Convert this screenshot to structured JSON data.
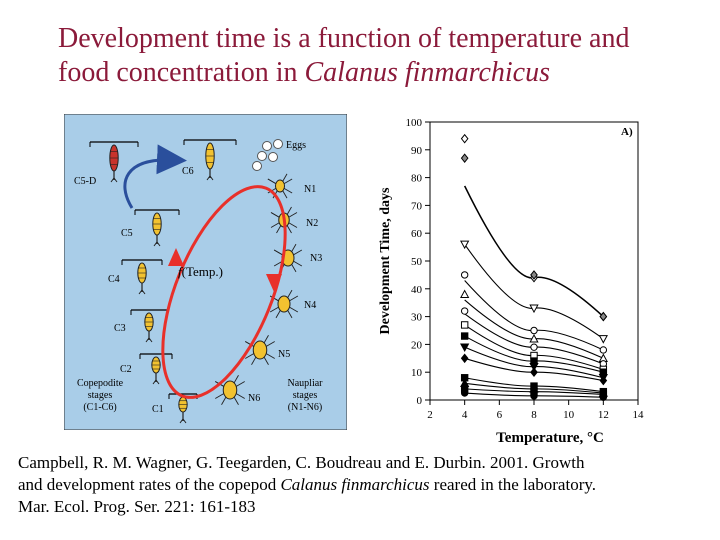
{
  "slide": {
    "title_line1": "Development time is a function of temperature and",
    "title_line2_prefix": "food concentration in ",
    "title_line2_species": "Calanus finmarchicus"
  },
  "diagram": {
    "center_label_f": "f",
    "center_label_rest": "(Temp.)",
    "eggs_label": "Eggs",
    "copepodite_labels": [
      "C5-D",
      "C6",
      "C5",
      "C4",
      "C3",
      "C2",
      "C1"
    ],
    "naupliar_labels": [
      "N1",
      "N2",
      "N3",
      "N4",
      "N5",
      "N6"
    ],
    "copepodite_caption": [
      "Copepodite",
      "stages",
      "(C1-C6)"
    ],
    "naupliar_caption": [
      "Naupliar",
      "stages",
      "(N1-N6)"
    ],
    "colors": {
      "background": "#a9cde8",
      "cycle_arrow": "#e8302a",
      "molt_arrow": "#2a4f9c",
      "body": "#f2c230",
      "c5d_body": "#c8332c"
    }
  },
  "chart_data": {
    "type": "scatter",
    "panel_label": "A)",
    "xlabel": "Temperature, °C",
    "ylabel": "Development Time, days",
    "xlim": [
      2,
      14
    ],
    "ylim": [
      0,
      100
    ],
    "xticks": [
      2,
      4,
      6,
      8,
      10,
      12,
      14
    ],
    "yticks": [
      0,
      10,
      20,
      30,
      40,
      50,
      60,
      70,
      80,
      90,
      100
    ],
    "grid": false,
    "x": [
      4,
      8,
      12
    ],
    "series": [
      {
        "marker": "diamond-open",
        "values": [
          94,
          44,
          30
        ]
      },
      {
        "marker": "diamond-gray",
        "values": [
          87,
          45,
          30
        ]
      },
      {
        "marker": "triangle-down-open",
        "values": [
          56,
          33,
          22
        ]
      },
      {
        "marker": "circle-open",
        "values": [
          45,
          25,
          18
        ]
      },
      {
        "marker": "triangle-up-open",
        "values": [
          38,
          22,
          15
        ]
      },
      {
        "marker": "circle-open",
        "values": [
          32,
          19,
          13
        ]
      },
      {
        "marker": "square-open",
        "values": [
          27,
          16,
          11
        ]
      },
      {
        "marker": "square-filled",
        "values": [
          23,
          14,
          10
        ]
      },
      {
        "marker": "triangle-down-filled",
        "values": [
          19,
          12,
          8
        ]
      },
      {
        "marker": "diamond-filled",
        "values": [
          15,
          10,
          7
        ]
      },
      {
        "marker": "square-filled",
        "values": [
          8,
          5,
          3
        ]
      },
      {
        "marker": "triangle-up-filled",
        "values": [
          6,
          4,
          2.5
        ]
      },
      {
        "marker": "square-filled",
        "values": [
          4,
          3,
          2
        ]
      },
      {
        "marker": "circle-filled",
        "values": [
          2.5,
          1.5,
          1
        ]
      }
    ],
    "curves": [
      {
        "values": [
          77,
          44,
          30
        ]
      },
      {
        "values": [
          56,
          33,
          22
        ]
      },
      {
        "values": [
          43,
          25,
          18
        ]
      },
      {
        "values": [
          36,
          22,
          15
        ]
      },
      {
        "values": [
          31,
          19,
          13
        ]
      },
      {
        "values": [
          27,
          16,
          11
        ]
      },
      {
        "values": [
          23,
          14,
          10
        ]
      },
      {
        "values": [
          19,
          12,
          8
        ]
      },
      {
        "values": [
          15,
          10,
          7
        ]
      },
      {
        "values": [
          8,
          5,
          3
        ]
      },
      {
        "values": [
          6,
          4,
          2.5
        ]
      },
      {
        "values": [
          4,
          3,
          2
        ]
      },
      {
        "values": [
          2.5,
          1.5,
          1
        ]
      }
    ]
  },
  "citation": {
    "line1": "Campbell, R. M. Wagner, G. Teegarden, C. Boudreau and E. Durbin. 2001. Growth",
    "line2_prefix": "and development rates of the copepod ",
    "line2_species": "Calanus finmarchicus",
    "line2_suffix": " reared in the laboratory.",
    "line3": "Mar. Ecol. Prog. Ser. 221: 161-183"
  }
}
